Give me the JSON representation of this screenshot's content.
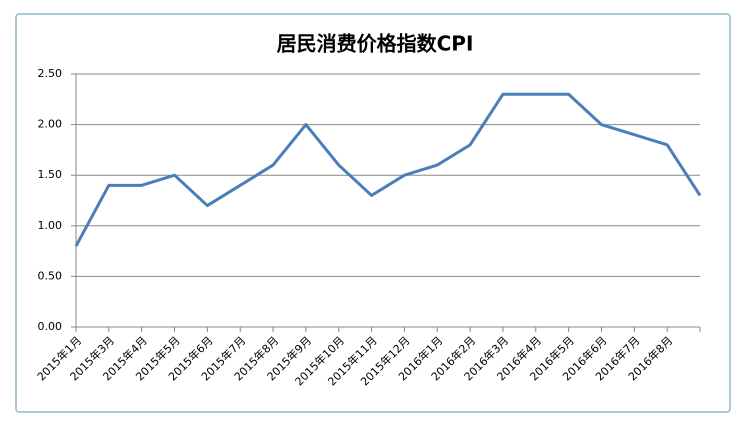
{
  "chart_data": {
    "type": "line",
    "title": "居民消费价格指数CPI",
    "categories": [
      "2015年1月",
      "2015年3月",
      "2015年4月",
      "2015年5月",
      "2015年6月",
      "2015年7月",
      "2015年8月",
      "2015年9月",
      "2015年10月",
      "2015年11月",
      "2015年12月",
      "2016年1月",
      "2016年2月",
      "2016年3月",
      "2016年4月",
      "2016年5月",
      "2016年6月",
      "2016年7月",
      "2016年8月",
      null
    ],
    "series": [
      {
        "color": "#4a7ebb",
        "values": [
          0.8,
          1.4,
          1.4,
          1.5,
          1.2,
          1.4,
          1.6,
          2.0,
          1.6,
          1.3,
          1.5,
          1.6,
          1.8,
          2.3,
          2.3,
          2.3,
          2.0,
          1.9,
          1.8,
          1.3
        ]
      }
    ],
    "ylim": [
      0,
      2.5
    ],
    "yticks": [
      {
        "value": 0,
        "label": "0.00"
      },
      {
        "value": 0.5,
        "label": "0.50"
      },
      {
        "value": 1,
        "label": "1.00"
      },
      {
        "value": 1.5,
        "label": "1.50"
      },
      {
        "value": 2,
        "label": "2.00"
      },
      {
        "value": 2.5,
        "label": "2.50"
      }
    ],
    "grid": true
  }
}
